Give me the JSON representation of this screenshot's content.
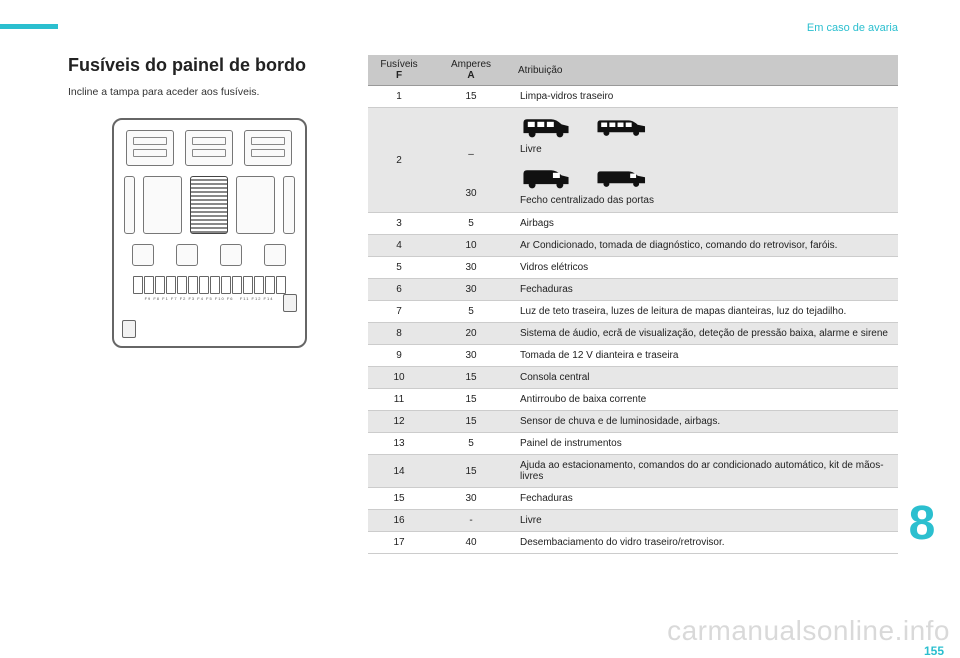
{
  "header": {
    "section": "Em caso de avaria"
  },
  "title": "Fusíveis do painel de bordo",
  "subtitle": "Incline a tampa para aceder aos fusíveis.",
  "pageChapter": "8",
  "pageNumber": "155",
  "watermark": "carmanualsonline.info",
  "table": {
    "head": {
      "f1": "Fusíveis",
      "f2": "F",
      "a1": "Amperes",
      "a2": "A",
      "attr": "Atribuição"
    },
    "row2": {
      "f": "2",
      "a1": "–",
      "t1": "Livre",
      "a2": "30",
      "t2": "Fecho centralizado das portas"
    },
    "rows": [
      {
        "f": "1",
        "a": "15",
        "t": "Limpa-vidros traseiro"
      },
      {
        "f": "3",
        "a": "5",
        "t": "Airbags"
      },
      {
        "f": "4",
        "a": "10",
        "t": "Ar Condicionado, tomada de diagnóstico, comando do retrovisor, faróis."
      },
      {
        "f": "5",
        "a": "30",
        "t": "Vidros elétricos"
      },
      {
        "f": "6",
        "a": "30",
        "t": "Fechaduras"
      },
      {
        "f": "7",
        "a": "5",
        "t": "Luz de teto traseira, luzes de leitura de mapas dianteiras, luz do tejadilho."
      },
      {
        "f": "8",
        "a": "20",
        "t": "Sistema de áudio, ecrã de visualização, deteção de pressão baixa, alarme e sirene"
      },
      {
        "f": "9",
        "a": "30",
        "t": "Tomada de 12 V dianteira e traseira"
      },
      {
        "f": "10",
        "a": "15",
        "t": "Consola central"
      },
      {
        "f": "11",
        "a": "15",
        "t": "Antirroubo de baixa corrente"
      },
      {
        "f": "12",
        "a": "15",
        "t": "Sensor de chuva e de luminosidade, airbags."
      },
      {
        "f": "13",
        "a": "5",
        "t": "Painel de instrumentos"
      },
      {
        "f": "14",
        "a": "15",
        "t": "Ajuda ao estacionamento, comandos do ar condicionado automático, kit de mãos-livres"
      },
      {
        "f": "15",
        "a": "30",
        "t": "Fechaduras"
      },
      {
        "f": "16",
        "a": "-",
        "t": "Livre"
      },
      {
        "f": "17",
        "a": "40",
        "t": "Desembaciamento do vidro traseiro/retrovisor."
      }
    ]
  }
}
